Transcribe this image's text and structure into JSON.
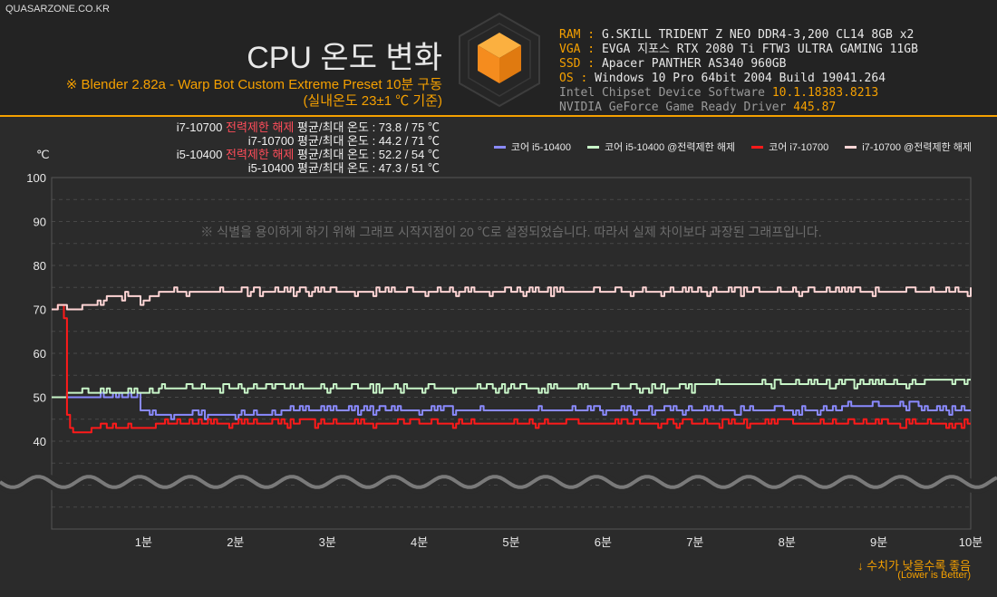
{
  "site": "QUASARZONE.CO.KR",
  "title": "CPU 온도 변화",
  "subtitle1": "※ Blender 2.82a - Warp Bot Custom Extreme Preset 10분 구동",
  "subtitle2": "(실내온도 23±1 ℃ 기준)",
  "specs": [
    {
      "key": "RAM",
      "sep": " : ",
      "value": "G.SKILL TRIDENT Z NEO DDR4-3,200 CL14 8GB x2",
      "dim": false
    },
    {
      "key": "VGA",
      "sep": " : ",
      "value": "EVGA 지포스 RTX 2080 Ti FTW3 ULTRA GAMING 11GB",
      "dim": false
    },
    {
      "key": "SSD",
      "sep": " : ",
      "value": "Apacer PANTHER AS340 960GB",
      "dim": false
    },
    {
      "key": "OS",
      "sep": " : ",
      "value": "Windows 10 Pro 64bit 2004 Build 19041.264",
      "dim": false
    },
    {
      "key": "Intel Chipset Device Software ",
      "sep": "",
      "value": "10.1.18383.8213",
      "dim": true
    },
    {
      "key": "NVIDIA GeForce Game Ready Driver ",
      "sep": "",
      "value": "445.87",
      "dim": true
    }
  ],
  "stats": [
    {
      "cpu": "i7-10700",
      "tag": " 전력제한 해제",
      "text": " 평균/최대 온도 : 73.8 / 75 ℃"
    },
    {
      "cpu": "i7-10700",
      "tag": "",
      "text": " 평균/최대 온도 : 44.2 / 71 ℃"
    },
    {
      "cpu": "i5-10400",
      "tag": " 전력제한 해제",
      "text": " 평균/최대 온도 : 52.2 / 54 ℃"
    },
    {
      "cpu": "i5-10400",
      "tag": "",
      "text": " 평균/최대 온도 : 47.3 / 51 ℃"
    }
  ],
  "unit_label": "℃",
  "note": "※ 식별을 용이하게 하기 위해 그래프 시작지점이 20 ℃로 설정되었습니다. 따라서 실제 차이보다 과장된 그래프입니다.",
  "lower_better": "↓ 수치가 낮을수록 좋음",
  "lower_better_en": "(Lower is Better)",
  "colors": {
    "accent": "#f5a000",
    "background": "#2b2b2b"
  },
  "chart_data": {
    "type": "line",
    "ylim": [
      20,
      100
    ],
    "xlim": [
      0,
      10
    ],
    "y_ticks": [
      "100",
      "90",
      "80",
      "70",
      "60",
      "50",
      "40"
    ],
    "y_tick_values": [
      100,
      90,
      80,
      70,
      60,
      50,
      40
    ],
    "x_ticks": [
      "1분",
      "2분",
      "3분",
      "4분",
      "5분",
      "6분",
      "7분",
      "8분",
      "9분",
      "10분"
    ],
    "x_tick_values": [
      1,
      2,
      3,
      4,
      5,
      6,
      7,
      8,
      9,
      10
    ],
    "axis_break": "wavy line between 40 and 20",
    "grid": "dashed horizontal",
    "legend_position": "top-right",
    "series": [
      {
        "name": "코어 i5-10400",
        "color": "#8a8aff",
        "points": [
          [
            0,
            50
          ],
          [
            0.9,
            50
          ],
          [
            0.95,
            51
          ],
          [
            0.97,
            46
          ],
          [
            1.5,
            46
          ],
          [
            2.0,
            46
          ],
          [
            3.0,
            47
          ],
          [
            4.0,
            47
          ],
          [
            5.0,
            47
          ],
          [
            6.0,
            47
          ],
          [
            7.0,
            47
          ],
          [
            8.0,
            47
          ],
          [
            9.0,
            48
          ],
          [
            10,
            47
          ]
        ],
        "avg": 47.3,
        "max": 51
      },
      {
        "name": "코어 i5-10400 @전력제한 해제",
        "color": "#c8f5c8",
        "points": [
          [
            0,
            50
          ],
          [
            0.3,
            51
          ],
          [
            0.35,
            53
          ],
          [
            0.4,
            51
          ],
          [
            1.0,
            51
          ],
          [
            1.3,
            52
          ],
          [
            2.0,
            52
          ],
          [
            4.0,
            52
          ],
          [
            6.0,
            52
          ],
          [
            8.0,
            53
          ],
          [
            9.0,
            53
          ],
          [
            10,
            54
          ]
        ],
        "avg": 52.2,
        "max": 54
      },
      {
        "name": "코어 i7-10700",
        "color": "#ff1a1a",
        "points": [
          [
            0,
            70
          ],
          [
            0.08,
            71
          ],
          [
            0.13,
            70
          ],
          [
            0.17,
            44
          ],
          [
            0.22,
            42
          ],
          [
            0.35,
            42
          ],
          [
            0.5,
            43
          ],
          [
            1.0,
            43
          ],
          [
            1.4,
            44
          ],
          [
            2.0,
            44
          ],
          [
            3.0,
            44
          ],
          [
            4.0,
            44
          ],
          [
            5.0,
            44
          ],
          [
            6.0,
            44
          ],
          [
            7.0,
            44
          ],
          [
            8.0,
            44
          ],
          [
            9.0,
            44
          ],
          [
            10,
            44
          ]
        ],
        "avg": 44.2,
        "max": 71
      },
      {
        "name": "i7-10700 @전력제한 해제",
        "color": "#ffd5d5",
        "points": [
          [
            0,
            70
          ],
          [
            0.1,
            71
          ],
          [
            0.2,
            70
          ],
          [
            0.45,
            71
          ],
          [
            0.55,
            72
          ],
          [
            0.65,
            73
          ],
          [
            0.9,
            73
          ],
          [
            1.0,
            72
          ],
          [
            1.2,
            74
          ],
          [
            2.0,
            74
          ],
          [
            4.0,
            74
          ],
          [
            6.0,
            74
          ],
          [
            8.0,
            74
          ],
          [
            9.0,
            74
          ],
          [
            10,
            74
          ]
        ],
        "avg": 73.8,
        "max": 75
      }
    ]
  }
}
